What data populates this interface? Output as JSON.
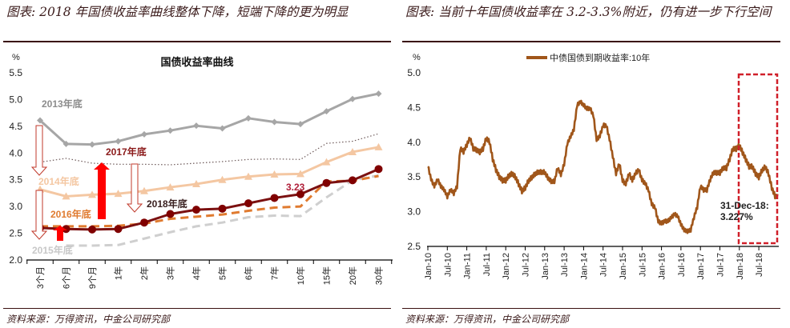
{
  "left": {
    "caption": "图表: 2018 年国债收益率曲线整体下降，短端下降的更为明显",
    "source": "资料来源：万得资讯，中金公司研究部"
  },
  "right": {
    "caption": "图表: 当前十年国债收益率在 3.2-3.3%附近，仍有进一步下行空间",
    "source": "资料来源：万得资讯，中金公司研究部"
  },
  "chart_data": [
    {
      "type": "line",
      "title": "国债收益率曲线",
      "ylabel": "%",
      "ylim": [
        2.0,
        5.5
      ],
      "yticks": [
        "2.0",
        "2.5",
        "3.0",
        "3.5",
        "4.0",
        "4.5",
        "5.0",
        "5.5"
      ],
      "categories": [
        "3个月",
        "6个月",
        "9个月",
        "1年",
        "2年",
        "3年",
        "4年",
        "5年",
        "6年",
        "7年",
        "10年",
        "15年",
        "20年",
        "30年"
      ],
      "series": [
        {
          "name": "2013年底",
          "color": "#a6a6a6",
          "style": "solid-diamond",
          "values": [
            4.61,
            4.17,
            4.16,
            4.22,
            4.35,
            4.42,
            4.51,
            4.46,
            4.65,
            4.58,
            4.54,
            4.78,
            5.01,
            5.11
          ]
        },
        {
          "name": "2017年底",
          "color": "#6e5a5a",
          "style": "dotted",
          "values": [
            3.83,
            3.9,
            3.81,
            3.79,
            3.79,
            3.78,
            3.81,
            3.84,
            3.88,
            3.89,
            3.88,
            4.18,
            4.22,
            4.36
          ]
        },
        {
          "name": "2014年底",
          "color": "#f4c7a2",
          "style": "solid-triangle",
          "values": [
            3.32,
            3.19,
            3.22,
            3.24,
            3.29,
            3.36,
            3.42,
            3.5,
            3.56,
            3.6,
            3.61,
            3.83,
            4.02,
            4.11
          ]
        },
        {
          "name": "2015年底",
          "color": "#cfcfcf",
          "style": "dashed",
          "values": [
            null,
            2.27,
            2.27,
            2.28,
            2.4,
            2.52,
            2.63,
            2.7,
            2.8,
            2.83,
            2.82,
            3.17,
            3.49,
            3.58
          ]
        },
        {
          "name": "2016年底",
          "color": "#e07b30",
          "style": "dashed",
          "values": [
            2.63,
            2.63,
            2.63,
            2.64,
            2.68,
            2.77,
            2.81,
            2.85,
            2.92,
            2.98,
            3.0,
            3.47,
            3.48,
            3.57
          ]
        },
        {
          "name": "2018年底",
          "color": "#7b1010",
          "style": "solid-circle",
          "values": [
            2.6,
            2.58,
            2.57,
            2.58,
            2.7,
            2.86,
            2.94,
            2.96,
            3.06,
            3.16,
            3.23,
            3.44,
            3.49,
            3.7
          ]
        }
      ],
      "annotations": {
        "label_2013": "2013年底",
        "label_2014": "2014年底",
        "label_2015": "2015年底",
        "label_2016": "2016年底",
        "label_2017": "2017年底",
        "label_2018": "2018年底",
        "value_10y_2018": "3.23"
      },
      "colors": {
        "arrow_fill": "#ff0000",
        "arrow_outline": "#c0392b"
      }
    },
    {
      "type": "line",
      "title": "",
      "legend": "中债国债到期收益率:10年",
      "legend_position": "top-center",
      "ylabel": "%",
      "ylim": [
        2.5,
        5.0
      ],
      "yticks": [
        "2.5",
        "3.0",
        "3.5",
        "4.0",
        "4.5",
        "5.0"
      ],
      "xticks": [
        "Jan-10",
        "Jul-10",
        "Jan-11",
        "Jul-11",
        "Jan-12",
        "Jul-12",
        "Jan-13",
        "Jul-13",
        "Jan-14",
        "Jul-14",
        "Jan-15",
        "Jul-15",
        "Jan-16",
        "Jul-16",
        "Jan-17",
        "Jul-17",
        "Jan-18",
        "Jul-18"
      ],
      "x_start": "Jan-10",
      "x_frequency": "monthly",
      "color": "#a0561a",
      "values": [
        3.65,
        3.45,
        3.35,
        3.45,
        3.35,
        3.3,
        3.2,
        3.3,
        3.25,
        3.35,
        3.9,
        3.85,
        3.95,
        4.05,
        3.9,
        3.88,
        3.85,
        3.9,
        4.05,
        4.0,
        3.75,
        3.6,
        3.5,
        3.45,
        3.45,
        3.52,
        3.55,
        3.5,
        3.4,
        3.3,
        3.35,
        3.45,
        3.5,
        3.55,
        3.58,
        3.58,
        3.58,
        3.5,
        3.45,
        3.45,
        3.65,
        3.55,
        3.7,
        4.0,
        4.1,
        4.2,
        4.55,
        4.6,
        4.55,
        4.5,
        4.5,
        4.4,
        4.05,
        4.1,
        4.25,
        4.25,
        4.05,
        3.8,
        3.55,
        3.7,
        3.45,
        3.4,
        3.55,
        3.45,
        3.55,
        3.6,
        3.45,
        3.4,
        3.3,
        3.1,
        3.05,
        2.85,
        2.82,
        2.85,
        2.85,
        2.9,
        2.95,
        2.92,
        2.8,
        2.72,
        2.7,
        2.72,
        2.9,
        3.05,
        3.35,
        3.3,
        3.3,
        3.45,
        3.55,
        3.55,
        3.55,
        3.62,
        3.62,
        3.75,
        3.9,
        3.9,
        3.95,
        3.85,
        3.75,
        3.65,
        3.65,
        3.55,
        3.5,
        3.6,
        3.65,
        3.55,
        3.35,
        3.23
      ],
      "annotation": {
        "line1": "31-Dec-18:",
        "line2": "3.227%"
      },
      "highlight_box": {
        "from": "Jan-18",
        "to": "Dec-18",
        "color": "#d0202a"
      }
    }
  ]
}
